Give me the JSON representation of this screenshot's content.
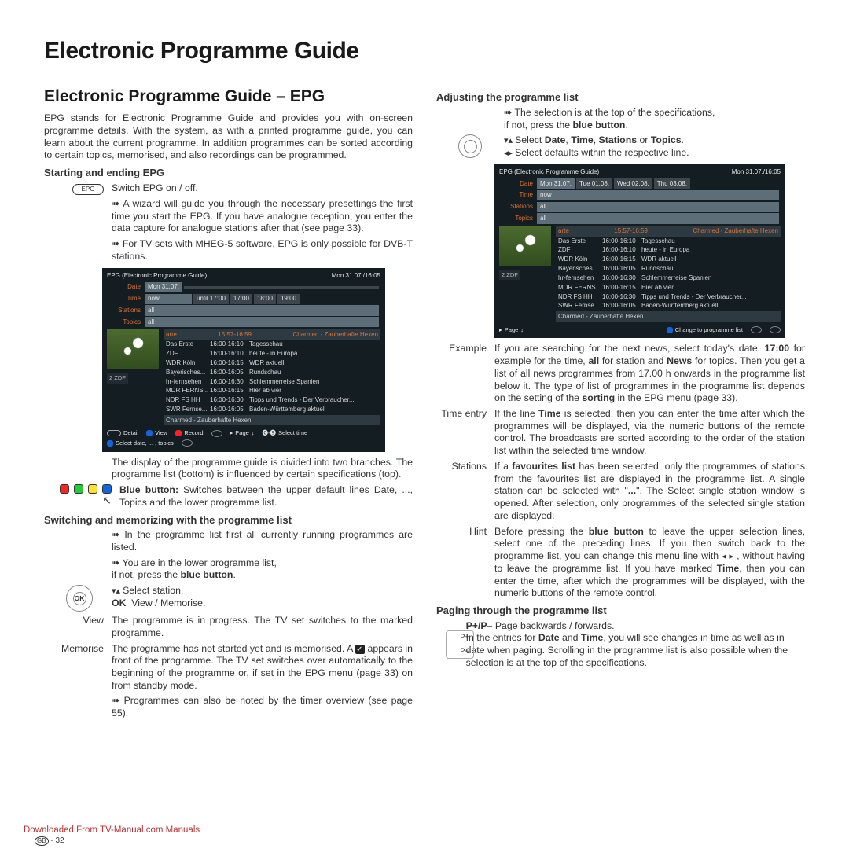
{
  "page": {
    "title": "Electronic Programme Guide",
    "subtitle": "Electronic Programme Guide – EPG",
    "intro": "EPG stands for Electronic Programme Guide and provides you with on-screen programme details. With the system, as with a printed programme guide, you can learn about the current programme. In addition programmes can be sorted according to certain topics, memorised, and also recordings can be programmed.",
    "footer_link": "Downloaded From TV-Manual.com Manuals",
    "page_no": "- 32",
    "gb": "GB"
  },
  "left": {
    "h_start": "Starting and ending EPG",
    "epgbtn": "EPG",
    "epgswitch": "Switch EPG on / off.",
    "b1": "A wizard will guide you through the necessary presettings the first time you start the EPG. If you have analogue reception, you enter the data capture for analogue stations after that (see page 33).",
    "b2": "For TV sets with MHEG-5 software, EPG is only possible for DVB-T stations.",
    "postfig": "The display of the programme guide is divided into two branches. The programme list (bottom) is influenced by certain specifications (top).",
    "blue_expl_pre": "Blue button:",
    "blue_expl": " Switches between the upper default lines Date, ..., Topics and the lower programme list.",
    "h_switch": "Switching and memorizing with the programme list",
    "b3": "In the programme list first all currently running programmes are listed.",
    "b4_a": "You are in the lower programme list,",
    "b4_b": "if not, press the blue button.",
    "sel_station": "Select station.",
    "ok_view": "OK  View / Memorise.",
    "view": "The programme is in progress. The TV set switches to the marked programme.",
    "memorise_a": "The programme has not started yet and is memorised. A ",
    "memorise_b": " appears in front of the programme. The TV set switches over automatically to the beginning of the programme or, if set in the EPG menu (page 33) on from standby mode.",
    "b5": "Programmes can also be noted by the timer overview (see page 55)."
  },
  "right": {
    "h_adj": "Adjusting the programme list",
    "adj1_a": "The selection is at the top of the specifications,",
    "adj1_b": "if not, press the blue button.",
    "adj2": "Select Date, Time, Stations or Topics.",
    "adj3": "Select defaults within the respective line.",
    "example": "If you are searching for the next news, select today's date, 17:00 for example for the time, all for station and News for topics. Then you get a list of all news programmes from 17.00 h onwards in the programme list below it. The type of list of programmes in the programme list depends on the setting of the sorting in the EPG menu (page 33).",
    "time_entry": "If the line Time is selected, then you can enter the time after which the programmes will be displayed, via the numeric buttons of the remote control. The broadcasts are sorted according to the order of the station list within the selected time window.",
    "stations": "If a favourites list has been selected, only the programmes of stations from the favourites list are displayed in the programme list. A single station can be selected with \"...\". The Select single station window is opened. After selection, only programmes of the selected single station are displayed.",
    "hint": "Before pressing the blue button to leave the upper selection lines, select one of the preceding lines. If you then switch back to the programme list, you can change this menu line with ◂ ▸ , without having to leave the programme list. If you have marked Time, then you can enter the time, after which the programmes will be displayed, with the numeric buttons of the remote control.",
    "h_page": "Paging through the programme list",
    "pager": "P+/P– Page backwards / forwards.",
    "pager_expl": "In the entries for Date and Time, you will see changes in time as well as in date when paging. Scrolling in the programme list is also possible when the selection is at the top of the specifications."
  },
  "epg": {
    "header_left": "EPG (Electronic Programme Guide)",
    "header_right": "Mon 31.07./16:05",
    "rows": {
      "date": "Mon 31.07.",
      "time": "now",
      "stations": "all",
      "topics": "all",
      "tabs": [
        "until 17:00",
        "17:00",
        "18:00",
        "19:00"
      ],
      "date_tabs": [
        "Tue 01.08.",
        "Wed 02.08.",
        "Thu 03.08."
      ]
    },
    "listhead_left": "arte",
    "listhead_mid": "15:57-16:59",
    "listhead_right": "Charmed - Zauberhafte Hexen",
    "list": [
      [
        "Das Erste",
        "16:00-16:10",
        "Tagesschau"
      ],
      [
        "ZDF",
        "16:00-16:10",
        "heute - in Europa"
      ],
      [
        "WDR Köln",
        "16:00-16:15",
        "WDR aktuell"
      ],
      [
        "Bayerisches...",
        "16:00-16:05",
        "Rundschau"
      ],
      [
        "hr-fernsehen",
        "16:00-16:30",
        "Schlemmerreise Spanien"
      ],
      [
        "MDR FERNS...",
        "16:00-16:15",
        "Hier ab vier"
      ],
      [
        "NDR FS HH",
        "16:00-16:30",
        "Tipps und Trends - Der Verbraucher..."
      ],
      [
        "SWR Fernse...",
        "16:00-16:05",
        "Baden-Württemberg aktuell"
      ]
    ],
    "foot": "Charmed - Zauberhafte Hexen",
    "chan": "2 ZDF",
    "buttons": {
      "detail": "Detail",
      "view": "View",
      "record": "Record",
      "page": "Page",
      "seltime": "Select time",
      "seld": "Select date, ... , topics",
      "chg": "Change to programme list"
    }
  }
}
